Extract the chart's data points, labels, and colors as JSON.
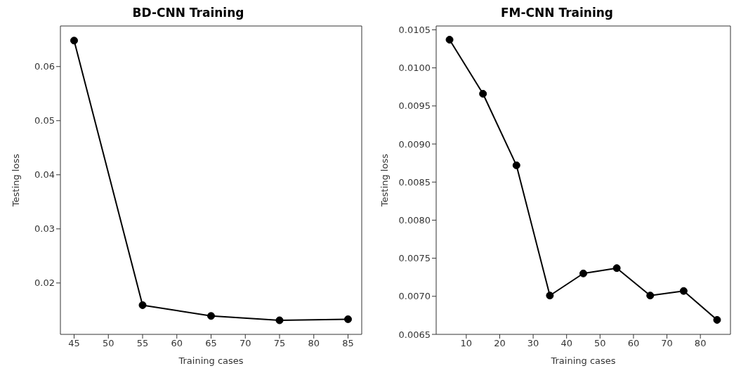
{
  "chart_data": [
    {
      "type": "line",
      "title": "BD-CNN Training",
      "xlabel": "Training cases",
      "ylabel": "Testing loss",
      "x": [
        45,
        55,
        65,
        75,
        85
      ],
      "series": [
        {
          "color": "#000000",
          "values": [
            0.0648,
            0.0159,
            0.0139,
            0.0131,
            0.0133
          ]
        }
      ],
      "xlim": [
        43,
        87
      ],
      "xticks": [
        45,
        50,
        55,
        60,
        65,
        70,
        75,
        80,
        85
      ],
      "ylim": [
        0.0105,
        0.0675
      ],
      "yticks": [
        0.02,
        0.03,
        0.04,
        0.05,
        0.06
      ],
      "marker": "circle",
      "line_style": "solid",
      "grid": false,
      "legend": false
    },
    {
      "type": "line",
      "title": "FM-CNN Training",
      "xlabel": "Training cases",
      "ylabel": "Testing loss",
      "x": [
        5,
        15,
        25,
        35,
        45,
        55,
        65,
        75,
        85
      ],
      "series": [
        {
          "color": "#000000",
          "values": [
            0.01037,
            0.00966,
            0.00872,
            0.00701,
            0.0073,
            0.00737,
            0.00701,
            0.00707,
            0.00669
          ]
        }
      ],
      "xlim": [
        1,
        89
      ],
      "xticks": [
        10,
        20,
        30,
        40,
        50,
        60,
        70,
        80
      ],
      "ylim": [
        0.0065,
        0.01055
      ],
      "yticks": [
        0.0065,
        {
          "value": 0.007,
          "label": "0.0070"
        },
        0.0075,
        {
          "value": 0.008,
          "label": "0.0080"
        },
        0.0085,
        {
          "value": 0.009,
          "label": "0.0090"
        },
        0.0095,
        {
          "value": 0.01,
          "label": "0.0100"
        },
        0.0105
      ],
      "marker": "circle",
      "line_style": "solid",
      "grid": false,
      "legend": false
    }
  ]
}
